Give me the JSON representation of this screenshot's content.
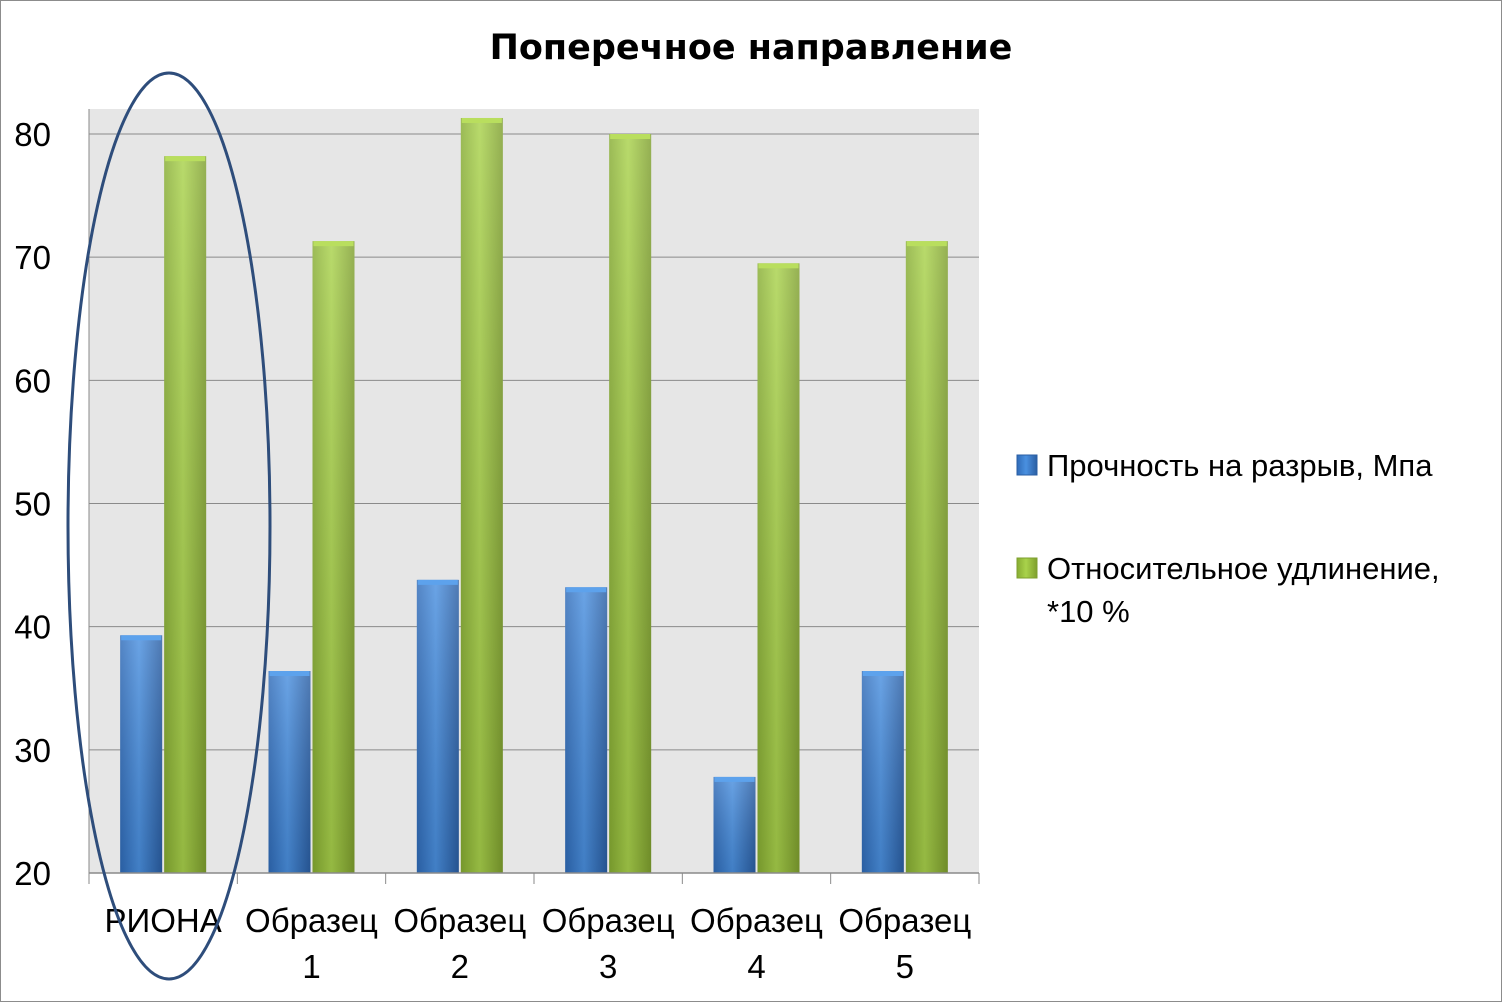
{
  "chart_data": {
    "type": "bar",
    "title": "Поперечное направление",
    "xlabel": "",
    "ylabel": "",
    "categories": [
      [
        "РИОНА"
      ],
      [
        "Образец",
        "1"
      ],
      [
        "Образец",
        "2"
      ],
      [
        "Образец",
        "3"
      ],
      [
        "Образец",
        "4"
      ],
      [
        "Образец",
        "5"
      ]
    ],
    "series": [
      {
        "name": "Прочность на разрыв, Мпа",
        "color": "#3A7FD0",
        "values": [
          39.3,
          36.4,
          43.8,
          43.2,
          27.8,
          36.4
        ]
      },
      {
        "name": "Относительное удлинение, *10 %",
        "name_lines": [
          "Относительное удлинение,",
          "*10 %"
        ],
        "color": "#9CC13F",
        "values": [
          78.2,
          71.3,
          81.3,
          80.0,
          69.5,
          71.3
        ]
      }
    ],
    "ylim": [
      20,
      80
    ],
    "yticks": [
      "20",
      "30",
      "40",
      "50",
      "60",
      "70",
      "80"
    ],
    "grid": true,
    "legend": "right",
    "highlight": "ellipse around РИОНА",
    "highlight_color": "#2E4D7B",
    "plot_background": "#E6E6E6"
  }
}
